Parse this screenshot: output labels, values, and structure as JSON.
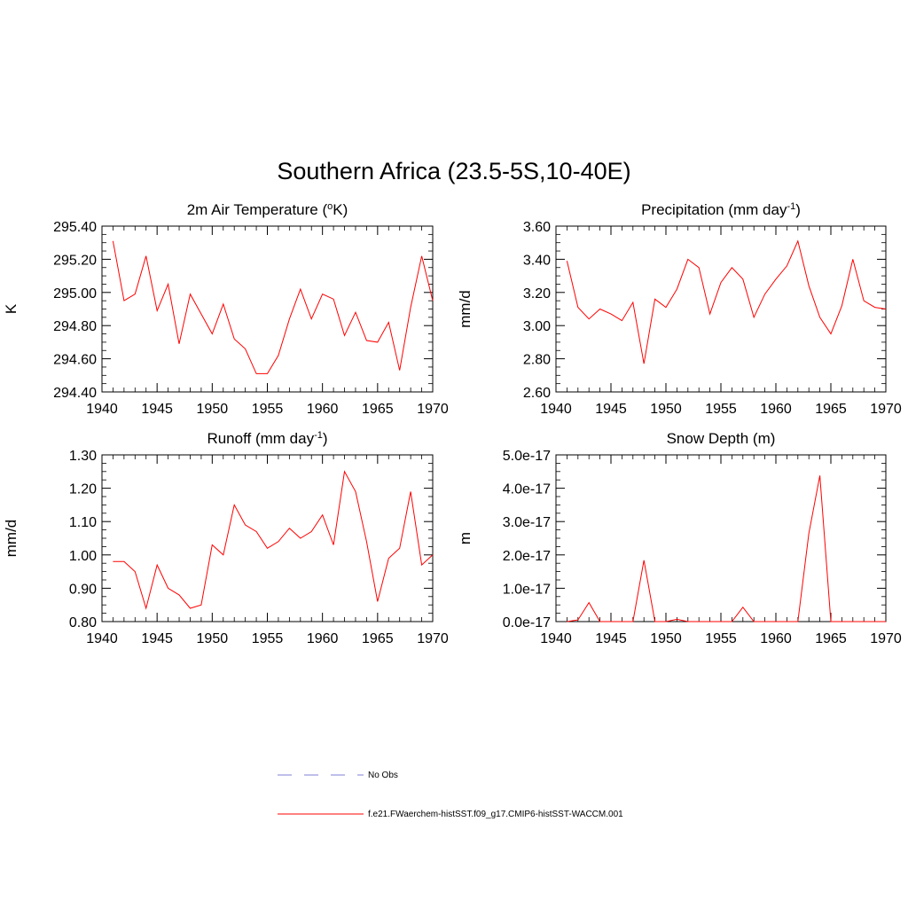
{
  "figure": {
    "title": "Southern Africa (23.5-5S,10-40E)"
  },
  "colors": {
    "model_line": "#ff0000",
    "obs_line": "#9999dd",
    "axis": "#000000"
  },
  "legend": {
    "items": [
      {
        "label": "No Obs",
        "style": "dashed",
        "color": "#9999dd"
      },
      {
        "label": "f.e21.FWaerchem-histSST.f09_g17.CMIP6-histSST-WACCM.001",
        "style": "solid",
        "color": "#ff0000"
      }
    ]
  },
  "chart_data": [
    {
      "type": "line",
      "title": "2m Air Temperature (",
      "title_sup": "o",
      "title_after": "K)",
      "title_sup2": "",
      "title_end": "",
      "ylabel": "K",
      "xlim": [
        1940,
        1970
      ],
      "ylim": [
        294.4,
        295.4
      ],
      "xticks": [
        1940,
        1945,
        1950,
        1955,
        1960,
        1965,
        1970
      ],
      "yticks": [
        "294.40",
        "294.60",
        "294.80",
        "295.00",
        "295.20",
        "295.40"
      ],
      "ytick_values": [
        294.4,
        294.6,
        294.8,
        295.0,
        295.2,
        295.4
      ],
      "y_minor_step": 0.05,
      "series": [
        {
          "x": [
            1941,
            1942,
            1943,
            1944,
            1945,
            1946,
            1947,
            1948,
            1949,
            1950,
            1951,
            1952,
            1953,
            1954,
            1955,
            1956,
            1957,
            1958,
            1959,
            1960,
            1961,
            1962,
            1963,
            1964,
            1965,
            1966,
            1967,
            1968,
            1969,
            1970
          ],
          "y": [
            295.31,
            294.95,
            294.99,
            295.22,
            294.89,
            295.05,
            294.69,
            294.99,
            294.87,
            294.75,
            294.93,
            294.72,
            294.66,
            294.51,
            294.51,
            294.62,
            294.84,
            295.02,
            294.84,
            294.99,
            294.96,
            294.74,
            294.88,
            294.71,
            294.7,
            294.82,
            294.53,
            294.91,
            295.22,
            294.95
          ]
        }
      ]
    },
    {
      "type": "line",
      "title": "Precipitation (mm day",
      "title_sup": "-1",
      "title_after": ")",
      "ylabel": "mm/d",
      "xlim": [
        1940,
        1970
      ],
      "ylim": [
        2.6,
        3.6
      ],
      "xticks": [
        1940,
        1945,
        1950,
        1955,
        1960,
        1965,
        1970
      ],
      "yticks": [
        "2.60",
        "2.80",
        "3.00",
        "3.20",
        "3.40",
        "3.60"
      ],
      "ytick_values": [
        2.6,
        2.8,
        3.0,
        3.2,
        3.4,
        3.6
      ],
      "y_minor_step": 0.05,
      "series": [
        {
          "x": [
            1941,
            1942,
            1943,
            1944,
            1945,
            1946,
            1947,
            1948,
            1949,
            1950,
            1951,
            1952,
            1953,
            1954,
            1955,
            1956,
            1957,
            1958,
            1959,
            1960,
            1961,
            1962,
            1963,
            1964,
            1965,
            1966,
            1967,
            1968,
            1969,
            1970
          ],
          "y": [
            3.39,
            3.11,
            3.04,
            3.1,
            3.07,
            3.03,
            3.14,
            2.77,
            3.16,
            3.11,
            3.22,
            3.4,
            3.35,
            3.07,
            3.26,
            3.35,
            3.28,
            3.05,
            3.19,
            3.28,
            3.36,
            3.51,
            3.24,
            3.05,
            2.95,
            3.12,
            3.4,
            3.15,
            3.11,
            3.1
          ]
        }
      ]
    },
    {
      "type": "line",
      "title": "Runoff (mm day",
      "title_sup": "-1",
      "title_after": ")",
      "ylabel": "mm/d",
      "xlim": [
        1940,
        1970
      ],
      "ylim": [
        0.8,
        1.3
      ],
      "xticks": [
        1940,
        1945,
        1950,
        1955,
        1960,
        1965,
        1970
      ],
      "yticks": [
        "0.80",
        "0.90",
        "1.00",
        "1.10",
        "1.20",
        "1.30"
      ],
      "ytick_values": [
        0.8,
        0.9,
        1.0,
        1.1,
        1.2,
        1.3
      ],
      "y_minor_step": 0.025,
      "series": [
        {
          "x": [
            1941,
            1942,
            1943,
            1944,
            1945,
            1946,
            1947,
            1948,
            1949,
            1950,
            1951,
            1952,
            1953,
            1954,
            1955,
            1956,
            1957,
            1958,
            1959,
            1960,
            1961,
            1962,
            1963,
            1964,
            1965,
            1966,
            1967,
            1968,
            1969,
            1970
          ],
          "y": [
            0.98,
            0.98,
            0.95,
            0.84,
            0.97,
            0.9,
            0.88,
            0.84,
            0.85,
            1.03,
            1.0,
            1.15,
            1.09,
            1.07,
            1.02,
            1.04,
            1.08,
            1.05,
            1.07,
            1.12,
            1.03,
            1.25,
            1.19,
            1.04,
            0.86,
            0.99,
            1.02,
            1.19,
            0.97,
            1.0
          ]
        }
      ]
    },
    {
      "type": "line",
      "title": "Snow Depth (m)",
      "title_sup": "",
      "title_after": "",
      "ylabel": "m",
      "xlim": [
        1940,
        1970
      ],
      "ylim": [
        0,
        5.0
      ],
      "xticks": [
        1940,
        1945,
        1950,
        1955,
        1960,
        1965,
        1970
      ],
      "yticks": [
        "0.0e-17",
        "1.0e-17",
        "2.0e-17",
        "3.0e-17",
        "4.0e-17",
        "5.0e-17"
      ],
      "ytick_values": [
        0,
        1,
        2,
        3,
        4,
        5
      ],
      "y_unit_scale": "1e-17",
      "y_minor_step": 0.25,
      "series": [
        {
          "x": [
            1941,
            1942,
            1943,
            1944,
            1945,
            1946,
            1947,
            1948,
            1949,
            1950,
            1951,
            1952,
            1953,
            1954,
            1955,
            1956,
            1957,
            1958,
            1959,
            1960,
            1961,
            1962,
            1963,
            1964,
            1965,
            1966,
            1967,
            1968,
            1969,
            1970
          ],
          "y": [
            0,
            0.05,
            0.57,
            0,
            0,
            0,
            0,
            1.84,
            0,
            0,
            0.07,
            0,
            0,
            0,
            0,
            0,
            0.43,
            0,
            0,
            0,
            0,
            0,
            2.65,
            4.38,
            0,
            0,
            0,
            0,
            0,
            0
          ]
        }
      ]
    }
  ]
}
